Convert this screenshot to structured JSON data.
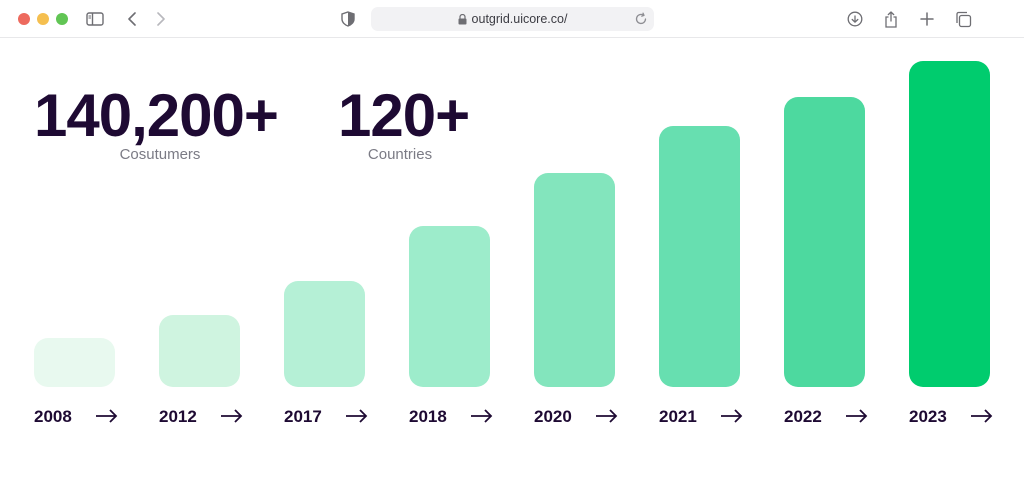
{
  "browser": {
    "url": "outgrid.uicore.co/",
    "icons": [
      "sidebar-icon",
      "back-icon",
      "forward-icon",
      "shield-icon",
      "lock-icon",
      "reload-icon",
      "download-icon",
      "share-icon",
      "new-tab-icon",
      "tabs-overview-icon"
    ]
  },
  "stats": [
    {
      "value": "140,200+",
      "label": "Cosutumers"
    },
    {
      "value": "120+",
      "label": "Countries"
    }
  ],
  "chart_data": {
    "type": "bar",
    "categories": [
      "2008",
      "2012",
      "2017",
      "2018",
      "2020",
      "2021",
      "2022",
      "2023"
    ],
    "values": [
      49,
      72,
      106,
      161,
      214,
      261,
      290,
      326
    ],
    "colors": [
      "#e8f9ef",
      "#cff4e0",
      "#b5f0d6",
      "#9deccb",
      "#83e5bd",
      "#67dfb0",
      "#4dd99f",
      "#00cc6e"
    ],
    "category_icon": "arrow-right-icon"
  },
  "colors": {
    "text_dark": "#1e0a33",
    "text_muted": "#7b7b85",
    "accent": "#00cc6e"
  }
}
